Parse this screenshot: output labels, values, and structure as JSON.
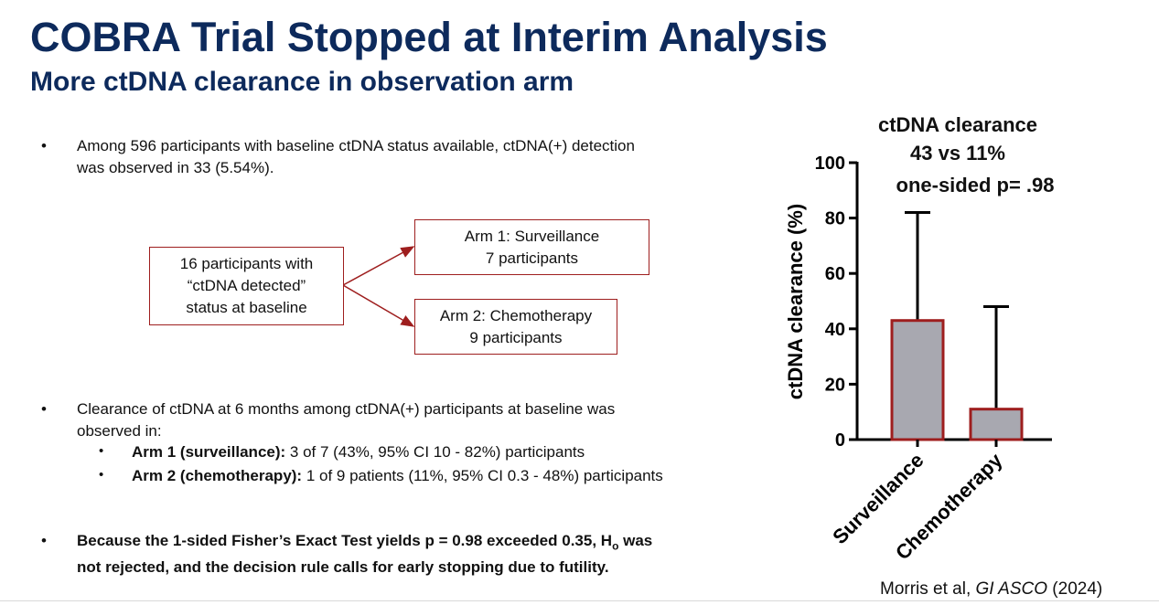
{
  "slide": {
    "title": "COBRA Trial Stopped at Interim Analysis",
    "subtitle": "More ctDNA clearance in observation arm"
  },
  "bullets": {
    "b1_line1": "Among 596 participants with baseline ctDNA status available, ctDNA(+) detection",
    "b1_line2": "was observed in 33 (5.54%).",
    "b2_line1": "Clearance of ctDNA at 6 months among ctDNA(+) participants at baseline was",
    "b2_line2": "observed in:",
    "sub1_bold": "Arm 1 (surveillance):",
    "sub1_rest": " 3 of 7 (43%, 95% CI 10 - 82%) participants",
    "sub2_bold": "Arm 2 (chemotherapy):",
    "sub2_rest": " 1 of 9 patients (11%, 95% CI 0.3 - 48%) participants",
    "b3_line1_pre": "Because the 1-sided Fisher’s Exact Test yields p = 0.98 exceeded 0.35, H",
    "b3_sub": "o",
    "b3_line1_post": " was",
    "b3_line2": "not rejected, and the decision rule calls for early stopping due to futility."
  },
  "flow": {
    "source_line1": "16 participants with",
    "source_line2": "“ctDNA detected”",
    "source_line3": "status at baseline",
    "arm1_line1": "Arm 1: Surveillance",
    "arm1_line2": "7 participants",
    "arm2_line1": "Arm 2: Chemotherapy",
    "arm2_line2": "9 participants"
  },
  "chart_data": {
    "type": "bar",
    "title_lines": [
      "ctDNA clearance",
      "43 vs 11%",
      "one-sided p= .98"
    ],
    "ylabel": "ctDNA clearance (%)",
    "xlabel": "",
    "categories": [
      "Surveillance",
      "Chemotherapy"
    ],
    "values": [
      43,
      11
    ],
    "error_upper": [
      82,
      48
    ],
    "ylim": [
      0,
      100
    ],
    "yticks": [
      0,
      20,
      40,
      60,
      80,
      100
    ],
    "bar_fill": "#a8a8b0",
    "bar_edge": "#9e1e1e",
    "grid": false
  },
  "citation": {
    "pre": "Morris et al, ",
    "journal": "GI ASCO",
    "post": " (2024)"
  },
  "colors": {
    "title": "#0d2a5c",
    "flow_border": "#9e1e1e"
  }
}
